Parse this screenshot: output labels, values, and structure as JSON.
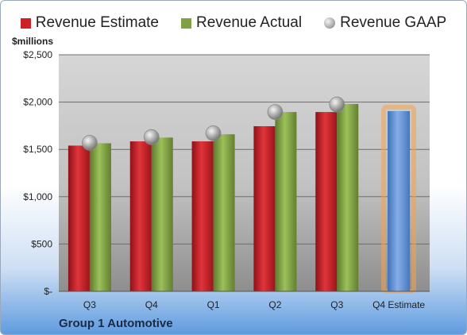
{
  "chart_data": {
    "type": "bar",
    "unit_label": "$millions",
    "footer": "Group 1 Automotive",
    "categories": [
      "Q3",
      "Q4",
      "Q1",
      "Q2",
      "Q3",
      "Q4 Estimate"
    ],
    "ylim": [
      0,
      2500
    ],
    "y_ticks": [
      0,
      500,
      1000,
      1500,
      2000,
      2500
    ],
    "y_tick_labels": [
      "$-",
      "$500",
      "$1,000",
      "$1,500",
      "$2,000",
      "$2,500"
    ],
    "grid": true,
    "legend_position": "top",
    "series": [
      {
        "name": "Revenue Estimate",
        "kind": "bar",
        "color": "#cc2127",
        "values": [
          1540,
          1585,
          1585,
          1745,
          1895,
          null
        ]
      },
      {
        "name": "Revenue Actual",
        "kind": "bar",
        "color": "#7fa043",
        "values": [
          1565,
          1625,
          1660,
          1895,
          1980,
          null
        ]
      },
      {
        "name": "Revenue GAAP",
        "kind": "marker",
        "color": "#a6a6a6",
        "values": [
          1570,
          1630,
          1670,
          1895,
          1975,
          null
        ]
      }
    ],
    "forecast": {
      "category": "Q4 Estimate",
      "value": 1905,
      "color": "#5b8ed6",
      "highlight_color": "#f5a24a"
    }
  }
}
